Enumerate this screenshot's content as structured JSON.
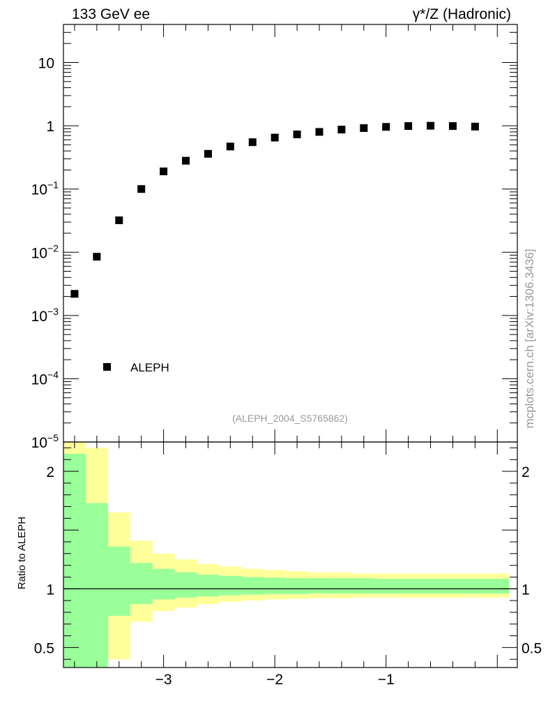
{
  "header": {
    "left": "133 GeV ee",
    "right": "γ*/Z (Hadronic)"
  },
  "side_label": "mcplots.cern.ch [arXiv:1306.3436]",
  "chart_data": [
    {
      "type": "scatter",
      "panel": "main",
      "yscale": "log",
      "xlim": [
        -3.9,
        0.18
      ],
      "ylim": [
        1e-05,
        40
      ],
      "series": [
        {
          "name": "ALEPH",
          "marker": "square",
          "color": "#000000",
          "x": [
            -3.8,
            -3.6,
            -3.4,
            -3.2,
            -3.0,
            -2.8,
            -2.6,
            -2.4,
            -2.2,
            -2.0,
            -1.8,
            -1.6,
            -1.4,
            -1.2,
            -1.0,
            -0.8,
            -0.6,
            -0.4,
            -0.2
          ],
          "y": [
            0.0022,
            0.0085,
            0.032,
            0.1,
            0.19,
            0.28,
            0.36,
            0.47,
            0.55,
            0.65,
            0.73,
            0.8,
            0.87,
            0.92,
            0.96,
            0.99,
            1.0,
            0.99,
            0.97
          ]
        }
      ],
      "y_ticks": [
        {
          "value": 10,
          "base": "10",
          "exp": ""
        },
        {
          "value": 1,
          "base": "1",
          "exp": ""
        },
        {
          "value": 0.1,
          "base": "10",
          "exp": "−1"
        },
        {
          "value": 0.01,
          "base": "10",
          "exp": "−2"
        },
        {
          "value": 0.001,
          "base": "10",
          "exp": "−3"
        },
        {
          "value": 0.0001,
          "base": "10",
          "exp": "−4"
        },
        {
          "value": 1e-05,
          "base": "10",
          "exp": "−5"
        }
      ],
      "legend": {
        "entries": [
          "ALEPH"
        ],
        "position": "bottom-left"
      },
      "annotation": "(ALEPH_2004_S5765862)"
    },
    {
      "type": "area",
      "panel": "ratio",
      "ylabel": "Ratio to ALEPH",
      "ylim": [
        0.33,
        2.25
      ],
      "xlim": [
        -3.9,
        0.18
      ],
      "y_ticks": [
        {
          "value": 2,
          "label": "2"
        },
        {
          "value": 1,
          "label": "1"
        },
        {
          "value": 0.5,
          "label": "0.5"
        }
      ],
      "x_ticks": [
        {
          "value": -3,
          "label": "−3"
        },
        {
          "value": -2,
          "label": "−2"
        },
        {
          "value": -1,
          "label": "−1"
        }
      ],
      "reference_line": 1,
      "bins": {
        "edges": [
          -3.9,
          -3.7,
          -3.5,
          -3.3,
          -3.1,
          -2.9,
          -2.7,
          -2.5,
          -2.3,
          -2.1,
          -1.9,
          -1.7,
          -1.5,
          -1.3,
          -1.1,
          -0.9,
          -0.7,
          -0.5,
          -0.3,
          0.15
        ],
        "total_up": [
          2.4,
          2.2,
          1.65,
          1.41,
          1.3,
          1.25,
          1.21,
          1.19,
          1.17,
          1.16,
          1.15,
          1.14,
          1.14,
          1.13,
          1.13,
          1.13,
          1.13,
          1.13,
          1.13
        ],
        "total_down": [
          0.3,
          0.3,
          0.4,
          0.72,
          0.81,
          0.84,
          0.87,
          0.89,
          0.9,
          0.91,
          0.915,
          0.92,
          0.92,
          0.925,
          0.925,
          0.925,
          0.925,
          0.925,
          0.925
        ],
        "stat_up": [
          2.15,
          1.73,
          1.36,
          1.22,
          1.17,
          1.14,
          1.12,
          1.11,
          1.1,
          1.095,
          1.09,
          1.09,
          1.09,
          1.09,
          1.085,
          1.085,
          1.085,
          1.085,
          1.085
        ],
        "stat_down": [
          0.3,
          0.3,
          0.77,
          0.87,
          0.91,
          0.925,
          0.935,
          0.945,
          0.95,
          0.955,
          0.955,
          0.96,
          0.96,
          0.96,
          0.96,
          0.96,
          0.96,
          0.96,
          0.96
        ]
      },
      "colors": {
        "stat": "#99ff99",
        "total": "#ffff99",
        "line": "#000000"
      }
    }
  ]
}
